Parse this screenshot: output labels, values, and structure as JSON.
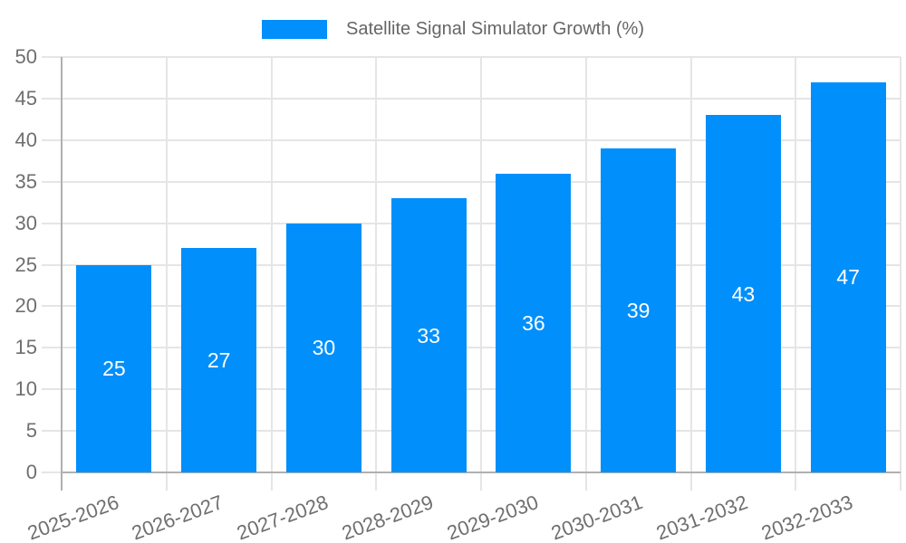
{
  "chart_data": {
    "type": "bar",
    "title": "",
    "legend": {
      "label": "Satellite Signal Simulator Growth (%)",
      "position": "top",
      "swatch_color": "#008FFB",
      "text_color": "#666666"
    },
    "categories": [
      "2025-2026",
      "2026-2027",
      "2027-2028",
      "2028-2029",
      "2029-2030",
      "2030-2031",
      "2031-2032",
      "2032-2033"
    ],
    "series": [
      {
        "name": "Satellite Signal Simulator Growth (%)",
        "values": [
          25,
          27,
          30,
          33,
          36,
          39,
          43,
          47
        ]
      }
    ],
    "bar_value_labels": [
      "25",
      "27",
      "30",
      "33",
      "36",
      "39",
      "43",
      "47"
    ],
    "xlabel": "",
    "ylabel": "",
    "ylim": [
      0,
      50
    ],
    "yticks": [
      0,
      5,
      10,
      15,
      20,
      25,
      30,
      35,
      40,
      45,
      50
    ],
    "grid": "on",
    "colors": {
      "bar": "#008FFB",
      "bar_label": "#ffffff",
      "axis_text": "#6f6f6f",
      "grid_line": "#e5e5e5",
      "axis_line": "#b0b0b0"
    }
  }
}
